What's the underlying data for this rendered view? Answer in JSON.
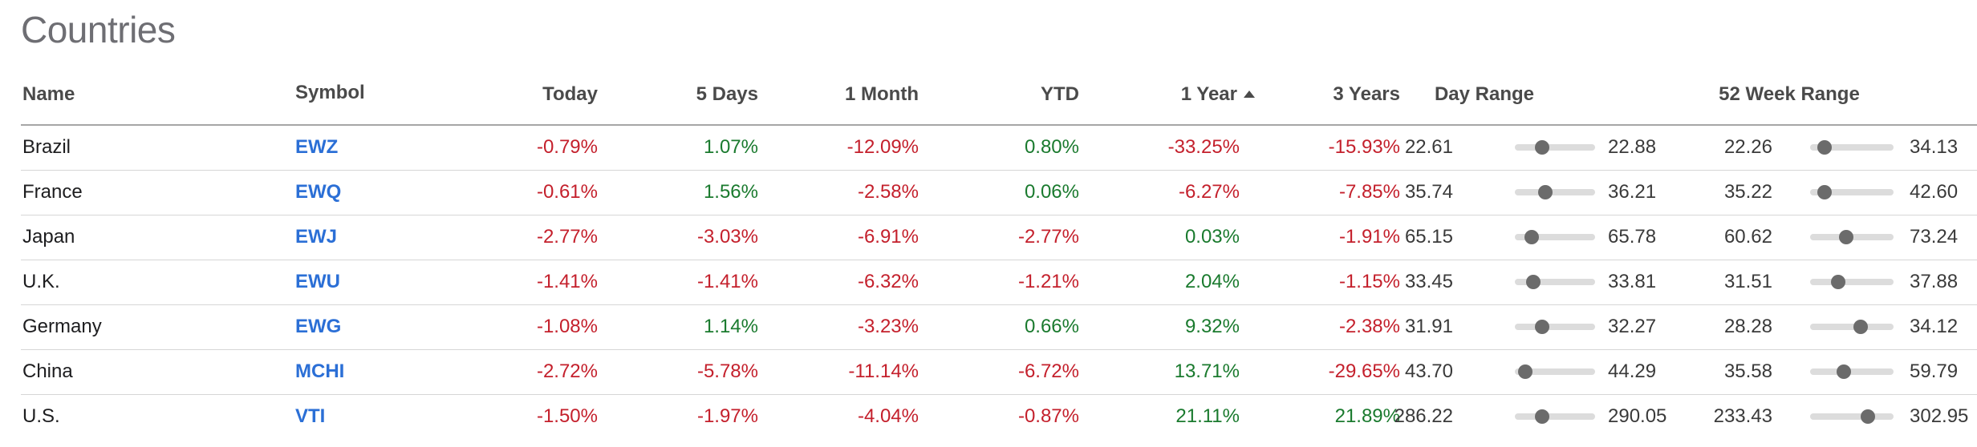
{
  "title": "Countries",
  "headers": {
    "name": "Name",
    "symbol": "Symbol",
    "today": "Today",
    "five_days": "5 Days",
    "one_month": "1 Month",
    "ytd": "YTD",
    "one_year": "1 Year",
    "three_years": "3 Years",
    "day_range": "Day Range",
    "week52_range": "52 Week Range"
  },
  "sort": {
    "column": "1 Year",
    "direction": "ascending",
    "icon": "sort-ascending-icon"
  },
  "colors": {
    "negative": "#c4202c",
    "positive": "#1a7a2e",
    "link": "#2b6fd6"
  },
  "rows": [
    {
      "name": "Brazil",
      "symbol": "EWZ",
      "today": "-0.79%",
      "five_days": "1.07%",
      "one_month": "-12.09%",
      "ytd": "0.80%",
      "one_year": "-33.25%",
      "three_years": "-15.93%",
      "day_low": "22.61",
      "day_high": "22.88",
      "day_pos": 0.3,
      "wk_low": "22.26",
      "wk_high": "34.13",
      "wk_pos": 0.1
    },
    {
      "name": "France",
      "symbol": "EWQ",
      "today": "-0.61%",
      "five_days": "1.56%",
      "one_month": "-2.58%",
      "ytd": "0.06%",
      "one_year": "-6.27%",
      "three_years": "-7.85%",
      "day_low": "35.74",
      "day_high": "36.21",
      "day_pos": 0.35,
      "wk_low": "35.22",
      "wk_high": "42.60",
      "wk_pos": 0.1
    },
    {
      "name": "Japan",
      "symbol": "EWJ",
      "today": "-2.77%",
      "five_days": "-3.03%",
      "one_month": "-6.91%",
      "ytd": "-2.77%",
      "one_year": "0.03%",
      "three_years": "-1.91%",
      "day_low": "65.15",
      "day_high": "65.78",
      "day_pos": 0.15,
      "wk_low": "60.62",
      "wk_high": "73.24",
      "wk_pos": 0.42
    },
    {
      "name": "U.K.",
      "symbol": "EWU",
      "today": "-1.41%",
      "five_days": "-1.41%",
      "one_month": "-6.32%",
      "ytd": "-1.21%",
      "one_year": "2.04%",
      "three_years": "-1.15%",
      "day_low": "33.45",
      "day_high": "33.81",
      "day_pos": 0.17,
      "wk_low": "31.51",
      "wk_high": "37.88",
      "wk_pos": 0.3
    },
    {
      "name": "Germany",
      "symbol": "EWG",
      "today": "-1.08%",
      "five_days": "1.14%",
      "one_month": "-3.23%",
      "ytd": "0.66%",
      "one_year": "9.32%",
      "three_years": "-2.38%",
      "day_low": "31.91",
      "day_high": "32.27",
      "day_pos": 0.3,
      "wk_low": "28.28",
      "wk_high": "34.12",
      "wk_pos": 0.63
    },
    {
      "name": "China",
      "symbol": "MCHI",
      "today": "-2.72%",
      "five_days": "-5.78%",
      "one_month": "-11.14%",
      "ytd": "-6.72%",
      "one_year": "13.71%",
      "three_years": "-29.65%",
      "day_low": "43.70",
      "day_high": "44.29",
      "day_pos": 0.05,
      "wk_low": "35.58",
      "wk_high": "59.79",
      "wk_pos": 0.38
    },
    {
      "name": "U.S.",
      "symbol": "VTI",
      "today": "-1.50%",
      "five_days": "-1.97%",
      "one_month": "-4.04%",
      "ytd": "-0.87%",
      "one_year": "21.11%",
      "three_years": "21.89%",
      "day_low": "286.22",
      "day_high": "290.05",
      "day_pos": 0.3,
      "wk_low": "233.43",
      "wk_high": "302.95",
      "wk_pos": 0.73
    }
  ]
}
